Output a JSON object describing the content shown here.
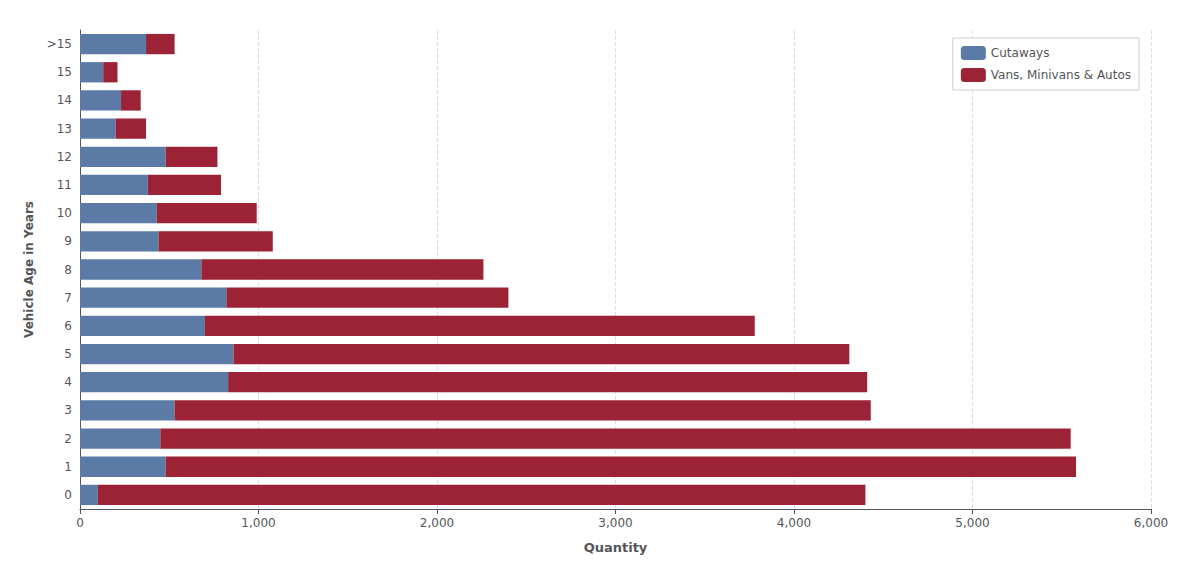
{
  "chart_data": {
    "type": "bar",
    "orientation": "horizontal",
    "stacked": true,
    "xlabel": "Quantity",
    "ylabel": "Vehicle Age in Years",
    "categories": [
      "0",
      "1",
      "2",
      "3",
      "4",
      "5",
      "6",
      "7",
      "8",
      "9",
      "10",
      "11",
      "12",
      "13",
      "14",
      "15",
      ">15"
    ],
    "series": [
      {
        "name": "Cutaways",
        "color": "#5b7ba6",
        "values": [
          100,
          480,
          450,
          530,
          830,
          860,
          700,
          820,
          680,
          440,
          430,
          380,
          480,
          200,
          230,
          130,
          370
        ]
      },
      {
        "name": "Vans, Minivans & Autos",
        "color": "#9b2335",
        "values": [
          4300,
          5100,
          5100,
          3900,
          3580,
          3450,
          3080,
          1580,
          1580,
          640,
          560,
          410,
          290,
          170,
          110,
          80,
          160
        ]
      }
    ],
    "xlim": [
      0,
      6000
    ],
    "xticks": [
      0,
      {
        "value": 1000,
        "label": "1,000"
      },
      {
        "value": 2000,
        "label": "2,000"
      },
      {
        "value": 3000,
        "label": "3,000"
      },
      {
        "value": 4000,
        "label": "4,000"
      },
      {
        "value": 5000,
        "label": "5,000"
      },
      {
        "value": 6000,
        "label": "6,000"
      }
    ],
    "grid": true,
    "legend": "upper right"
  }
}
